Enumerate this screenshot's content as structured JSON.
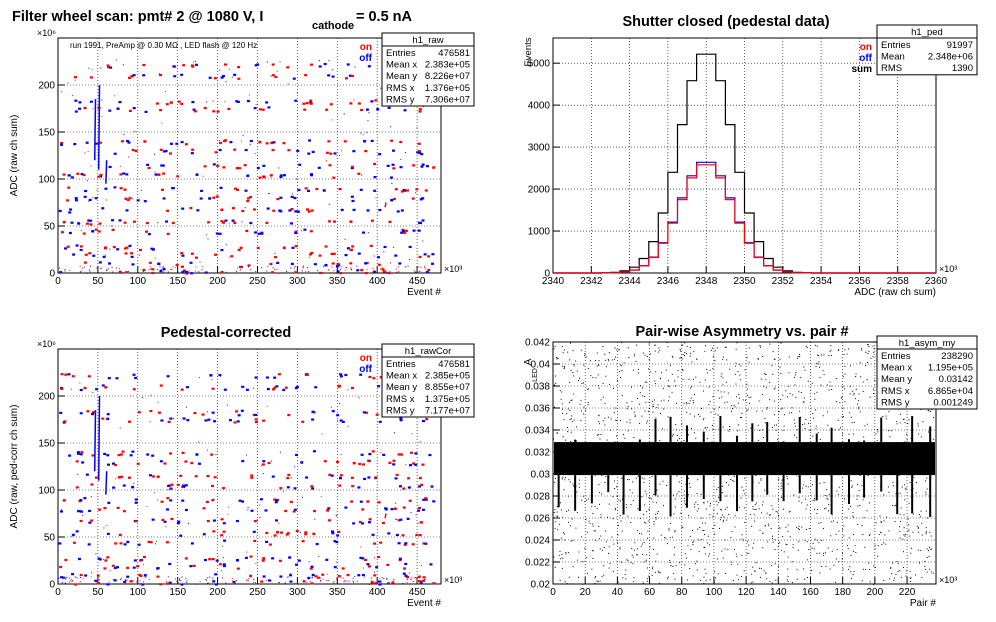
{
  "chart_data": [
    {
      "type": "scatter",
      "title_main": "Filter wheel scan: pmt#   2 @  1080 V, I",
      "title_sub": "cathode",
      "title_tail": "= 0.5 nA",
      "annotation": "run 1991, PreAmp @ 0.30 MΩ , LED flash @  120 Hz",
      "xlabel": "Event #",
      "ylabel": "ADC (raw ch sum)",
      "x_exponent": "×10³",
      "y_exponent": "×10⁶",
      "xlim": [
        0,
        480
      ],
      "ylim": [
        0,
        250
      ],
      "xticks": [
        0,
        50,
        100,
        150,
        200,
        250,
        300,
        350,
        400,
        450
      ],
      "yticks": [
        0,
        50,
        100,
        150,
        200
      ],
      "legend": [
        {
          "name": "on",
          "color": "#ff0000"
        },
        {
          "name": "off",
          "color": "#0000ff"
        }
      ],
      "band_levels": [
        222,
        210,
        183,
        175,
        140,
        130,
        115,
        105,
        90,
        80,
        68,
        55,
        45,
        28,
        20,
        10,
        3
      ],
      "stats": {
        "title": "h1_raw",
        "rows": [
          {
            "label": "Entries",
            "value": "476581"
          },
          {
            "label": "Mean x",
            "value": "2.383e+05"
          },
          {
            "label": "Mean y",
            "value": "8.226e+07"
          },
          {
            "label": "RMS x",
            "value": "1.376e+05"
          },
          {
            "label": "RMS y",
            "value": "7.306e+07"
          }
        ]
      }
    },
    {
      "type": "line",
      "title": "Shutter closed (pedestal data)",
      "xlabel": "ADC (raw ch sum)",
      "ylabel": "Events",
      "x_exponent": "×10³",
      "xlim": [
        2340,
        2360
      ],
      "ylim": [
        0,
        5600
      ],
      "xticks": [
        2340,
        2342,
        2344,
        2346,
        2348,
        2350,
        2352,
        2354,
        2356,
        2358,
        2360
      ],
      "yticks": [
        0,
        1000,
        2000,
        3000,
        4000,
        5000
      ],
      "legend": [
        {
          "name": "on",
          "color": "#ff0000"
        },
        {
          "name": "off",
          "color": "#0000ff"
        },
        {
          "name": "sum",
          "color": "#000000"
        }
      ],
      "series": [
        {
          "name": "sum",
          "color": "#000000",
          "mean": 2348.0,
          "sigma": 1.39,
          "peak": 5300
        },
        {
          "name": "off",
          "color": "#0000ff",
          "mean": 2348.0,
          "sigma": 1.39,
          "peak": 2680
        },
        {
          "name": "on",
          "color": "#ff0000",
          "mean": 2348.0,
          "sigma": 1.39,
          "peak": 2620
        }
      ],
      "stats": {
        "title": "h1_ped",
        "rows": [
          {
            "label": "Entries",
            "value": "91997"
          },
          {
            "label": "Mean",
            "value": "2.348e+06"
          },
          {
            "label": "RMS",
            "value": "1390"
          }
        ]
      }
    },
    {
      "type": "scatter",
      "title": "Pedestal-corrected",
      "xlabel": "Event #",
      "ylabel": "ADC (raw, ped-corr ch sum)",
      "x_exponent": "×10³",
      "y_exponent": "×10⁶",
      "xlim": [
        0,
        480
      ],
      "ylim": [
        0,
        250
      ],
      "xticks": [
        0,
        50,
        100,
        150,
        200,
        250,
        300,
        350,
        400,
        450
      ],
      "yticks": [
        0,
        50,
        100,
        150,
        200
      ],
      "legend": [
        {
          "name": "on",
          "color": "#ff0000"
        },
        {
          "name": "off",
          "color": "#0000ff"
        }
      ],
      "band_levels": [
        222,
        210,
        183,
        175,
        140,
        130,
        115,
        105,
        90,
        80,
        68,
        55,
        45,
        28,
        20,
        10,
        3
      ],
      "stats": {
        "title": "h1_rawCor",
        "rows": [
          {
            "label": "Entries",
            "value": "476581"
          },
          {
            "label": "Mean x",
            "value": "2.385e+05"
          },
          {
            "label": "Mean y",
            "value": "8.855e+07"
          },
          {
            "label": "RMS x",
            "value": "1.375e+05"
          },
          {
            "label": "RMS y",
            "value": "7.177e+07"
          }
        ]
      }
    },
    {
      "type": "scatter",
      "title": "Pair-wise Asymmetry vs. pair #",
      "xlabel": "Pair #",
      "ylabel": "A",
      "ylabel_sub": "LED",
      "x_exponent": "×10³",
      "xlim": [
        0,
        238
      ],
      "ylim": [
        0.02,
        0.042
      ],
      "xticks": [
        0,
        20,
        40,
        60,
        80,
        100,
        120,
        140,
        160,
        180,
        200,
        220
      ],
      "yticks": [
        0.02,
        0.022,
        0.024,
        0.026,
        0.028,
        0.03,
        0.032,
        0.034,
        0.036,
        0.038,
        0.04,
        0.042
      ],
      "band_center": 0.0314,
      "band_halfwidth": 0.0015,
      "spike_spacing": 10,
      "stats": {
        "title": "h1_asym_my",
        "rows": [
          {
            "label": "Entries",
            "value": "238290"
          },
          {
            "label": "Mean x",
            "value": "1.195e+05"
          },
          {
            "label": "Mean y",
            "value": "0.03142"
          },
          {
            "label": "RMS x",
            "value": "6.865e+04"
          },
          {
            "label": "RMS y",
            "value": "0.001249"
          }
        ]
      }
    }
  ]
}
